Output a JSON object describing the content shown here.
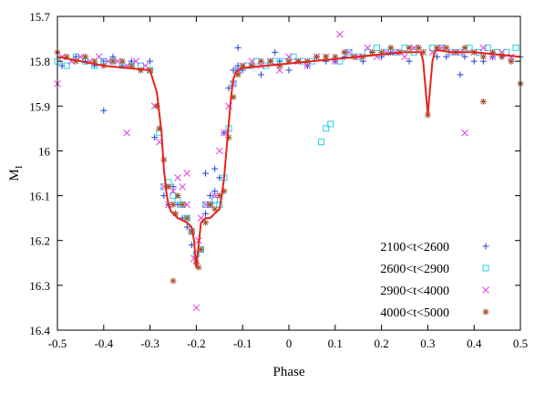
{
  "chart_data": {
    "type": "scatter",
    "title": "",
    "xlabel": "Phase",
    "ylabel": "M",
    "ylabel_subscript": "I",
    "xlim": [
      -0.5,
      0.5
    ],
    "ylim": [
      16.4,
      15.7
    ],
    "y_inverted": true,
    "grid": false,
    "legend_position": "bottom-right",
    "x_ticks": [
      -0.5,
      -0.4,
      -0.3,
      -0.2,
      -0.1,
      0,
      0.1,
      0.2,
      0.3,
      0.4,
      0.5
    ],
    "x_tick_labels": [
      "-0.5",
      "-0.4",
      "-0.3",
      "-0.2",
      "-0.1",
      "0",
      "0.1",
      "0.2",
      "0.3",
      "0.4",
      "0.5"
    ],
    "y_ticks": [
      15.7,
      15.8,
      15.9,
      16.0,
      16.1,
      16.2,
      16.3,
      16.4
    ],
    "y_tick_labels": [
      "15.7",
      "15.8",
      "15.9",
      "16",
      "16.1",
      "16.2",
      "16.3",
      "16.4"
    ],
    "series": [
      {
        "name": "2100<t<2600",
        "marker": "plus",
        "color": "#1f3fd6",
        "x": [
          -0.49,
          -0.46,
          -0.44,
          -0.42,
          -0.4,
          -0.38,
          -0.36,
          -0.34,
          -0.32,
          -0.3,
          -0.29,
          -0.27,
          -0.26,
          -0.25,
          -0.24,
          -0.23,
          -0.22,
          -0.21,
          -0.2,
          -0.19,
          -0.18,
          -0.17,
          -0.16,
          -0.15,
          -0.14,
          -0.13,
          -0.12,
          -0.11,
          -0.1,
          -0.08,
          -0.06,
          -0.04,
          -0.02,
          0.0,
          0.02,
          0.04,
          0.06,
          0.08,
          0.1,
          0.12,
          0.14,
          0.16,
          0.18,
          0.2,
          0.22,
          0.24,
          0.26,
          0.28,
          0.32,
          0.34,
          0.36,
          0.38,
          0.4,
          0.42,
          0.44,
          0.46,
          0.48,
          0.5,
          -0.4,
          0.37,
          -0.11,
          -0.03,
          0.12,
          -0.16,
          -0.18
        ],
        "y": [
          15.81,
          15.79,
          15.8,
          15.81,
          15.8,
          15.79,
          15.81,
          15.8,
          15.82,
          15.8,
          15.97,
          16.1,
          16.12,
          16.08,
          16.12,
          16.15,
          16.17,
          16.21,
          16.25,
          16.22,
          16.14,
          16.1,
          16.09,
          16.06,
          15.96,
          15.86,
          15.82,
          15.81,
          15.82,
          15.81,
          15.83,
          15.8,
          15.8,
          15.82,
          15.8,
          15.81,
          15.79,
          15.8,
          15.8,
          15.79,
          15.79,
          15.8,
          15.78,
          15.79,
          15.78,
          15.78,
          15.8,
          15.77,
          15.79,
          15.79,
          15.78,
          15.79,
          15.8,
          15.8,
          15.79,
          15.79,
          15.8,
          15.79,
          15.91,
          15.83,
          15.77,
          15.78,
          15.78,
          16.04,
          16.05
        ]
      },
      {
        "name": "2600<t<2900",
        "marker": "square",
        "color": "#22d3e6",
        "x": [
          -0.5,
          -0.48,
          -0.46,
          -0.44,
          -0.42,
          -0.4,
          -0.38,
          -0.36,
          -0.34,
          -0.32,
          -0.3,
          -0.28,
          -0.27,
          -0.26,
          -0.25,
          -0.24,
          -0.23,
          -0.22,
          -0.21,
          -0.2,
          -0.19,
          -0.18,
          -0.17,
          -0.16,
          -0.15,
          -0.14,
          -0.13,
          -0.12,
          -0.11,
          -0.09,
          -0.07,
          -0.05,
          -0.03,
          -0.01,
          0.01,
          0.03,
          0.05,
          0.07,
          0.08,
          0.09,
          0.11,
          0.13,
          0.15,
          0.17,
          0.19,
          0.21,
          0.23,
          0.25,
          0.27,
          0.31,
          0.33,
          0.35,
          0.37,
          0.39,
          0.41,
          0.43,
          0.45,
          0.47,
          0.49
        ],
        "y": [
          15.8,
          15.81,
          15.79,
          15.8,
          15.81,
          15.8,
          15.8,
          15.81,
          15.81,
          15.81,
          15.82,
          15.96,
          16.08,
          16.07,
          16.1,
          16.11,
          16.12,
          16.15,
          16.18,
          16.23,
          16.22,
          16.12,
          16.12,
          16.11,
          16.12,
          16.06,
          15.95,
          15.85,
          15.82,
          15.81,
          15.8,
          15.81,
          15.8,
          15.8,
          15.79,
          15.8,
          15.8,
          15.98,
          15.95,
          15.94,
          15.8,
          15.78,
          15.79,
          15.78,
          15.77,
          15.78,
          15.78,
          15.77,
          15.78,
          15.77,
          15.77,
          15.78,
          15.78,
          15.77,
          15.78,
          15.77,
          15.78,
          15.78,
          15.77
        ]
      },
      {
        "name": "2900<t<4000",
        "marker": "cross",
        "color": "#e040e0",
        "x": [
          -0.5,
          -0.49,
          -0.47,
          -0.45,
          -0.43,
          -0.41,
          -0.39,
          -0.37,
          -0.35,
          -0.33,
          -0.31,
          -0.29,
          -0.28,
          -0.27,
          -0.26,
          -0.25,
          -0.24,
          -0.23,
          -0.22,
          -0.21,
          -0.205,
          -0.2,
          -0.195,
          -0.19,
          -0.18,
          -0.17,
          -0.16,
          -0.15,
          -0.14,
          -0.13,
          -0.12,
          -0.11,
          -0.1,
          -0.08,
          -0.06,
          -0.04,
          -0.02,
          0.0,
          0.02,
          0.04,
          0.06,
          0.08,
          0.1,
          0.11,
          0.13,
          0.15,
          0.17,
          0.19,
          0.21,
          0.23,
          0.25,
          0.27,
          0.29,
          0.31,
          0.33,
          0.35,
          0.37,
          0.38,
          0.4,
          0.42,
          0.44,
          0.46,
          0.48,
          -0.35,
          -0.22
        ],
        "y": [
          15.85,
          15.79,
          15.8,
          15.79,
          15.8,
          15.79,
          15.8,
          15.8,
          15.81,
          15.8,
          15.81,
          15.9,
          15.98,
          16.08,
          16.12,
          16.09,
          16.06,
          16.08,
          16.12,
          16.18,
          16.24,
          16.35,
          16.2,
          16.15,
          16.12,
          16.12,
          16.1,
          16.0,
          15.96,
          15.9,
          15.85,
          15.82,
          15.81,
          15.8,
          15.81,
          15.8,
          15.82,
          15.79,
          15.8,
          15.81,
          15.79,
          15.79,
          15.8,
          15.74,
          15.78,
          15.79,
          15.77,
          15.79,
          15.78,
          15.78,
          15.79,
          15.77,
          15.78,
          15.78,
          15.77,
          15.78,
          15.78,
          15.96,
          15.78,
          15.77,
          15.79,
          15.78,
          15.79,
          15.96,
          16.05
        ]
      },
      {
        "name": "4000<t<5000",
        "marker": "star",
        "color": "#a0522d",
        "x": [
          -0.5,
          -0.48,
          -0.46,
          -0.44,
          -0.42,
          -0.4,
          -0.38,
          -0.36,
          -0.34,
          -0.32,
          -0.3,
          -0.285,
          -0.28,
          -0.27,
          -0.26,
          -0.25,
          -0.245,
          -0.24,
          -0.23,
          -0.22,
          -0.21,
          -0.2,
          -0.195,
          -0.19,
          -0.18,
          -0.17,
          -0.16,
          -0.15,
          -0.14,
          -0.13,
          -0.12,
          -0.11,
          -0.1,
          -0.08,
          -0.06,
          -0.04,
          -0.02,
          0.0,
          0.02,
          0.04,
          0.06,
          0.08,
          0.1,
          0.12,
          0.14,
          0.16,
          0.18,
          0.2,
          0.22,
          0.24,
          0.26,
          0.28,
          0.29,
          0.3,
          0.32,
          0.34,
          0.36,
          0.38,
          0.4,
          0.42,
          0.44,
          0.46,
          0.48,
          0.5,
          -0.25,
          0.42
        ],
        "y": [
          15.78,
          15.79,
          15.8,
          15.79,
          15.8,
          15.81,
          15.8,
          15.8,
          15.81,
          15.82,
          15.82,
          15.9,
          15.95,
          16.02,
          16.08,
          16.12,
          16.14,
          16.1,
          16.12,
          16.15,
          16.18,
          16.25,
          16.26,
          16.22,
          16.16,
          16.12,
          16.13,
          16.1,
          16.09,
          15.97,
          15.88,
          15.83,
          15.81,
          15.81,
          15.8,
          15.8,
          15.81,
          15.8,
          15.8,
          15.8,
          15.79,
          15.79,
          15.79,
          15.78,
          15.79,
          15.79,
          15.78,
          15.78,
          15.77,
          15.78,
          15.77,
          15.77,
          15.78,
          15.92,
          15.77,
          15.77,
          15.78,
          15.77,
          15.78,
          15.79,
          15.78,
          15.79,
          15.8,
          15.85,
          16.29,
          15.89
        ]
      }
    ],
    "model_curve": {
      "color": "#e8231a",
      "x": [
        -0.5,
        -0.45,
        -0.4,
        -0.35,
        -0.3,
        -0.285,
        -0.275,
        -0.27,
        -0.265,
        -0.26,
        -0.255,
        -0.25,
        -0.24,
        -0.23,
        -0.22,
        -0.21,
        -0.205,
        -0.2,
        -0.195,
        -0.19,
        -0.18,
        -0.17,
        -0.16,
        -0.15,
        -0.145,
        -0.14,
        -0.135,
        -0.13,
        -0.125,
        -0.12,
        -0.115,
        -0.11,
        -0.1,
        -0.05,
        0.0,
        0.05,
        0.1,
        0.15,
        0.2,
        0.25,
        0.285,
        0.29,
        0.295,
        0.3,
        0.305,
        0.31,
        0.315,
        0.32,
        0.35,
        0.4,
        0.45,
        0.5
      ],
      "y": [
        15.79,
        15.8,
        15.81,
        15.815,
        15.82,
        15.87,
        15.96,
        16.04,
        16.09,
        16.12,
        16.135,
        16.14,
        16.15,
        16.155,
        16.16,
        16.17,
        16.2,
        16.26,
        16.21,
        16.16,
        16.15,
        16.15,
        16.14,
        16.13,
        16.1,
        16.06,
        16.0,
        15.94,
        15.88,
        15.84,
        15.825,
        15.82,
        15.815,
        15.81,
        15.805,
        15.8,
        15.795,
        15.79,
        15.785,
        15.78,
        15.78,
        15.8,
        15.86,
        15.92,
        15.86,
        15.8,
        15.78,
        15.775,
        15.78,
        15.78,
        15.785,
        15.79
      ]
    }
  }
}
